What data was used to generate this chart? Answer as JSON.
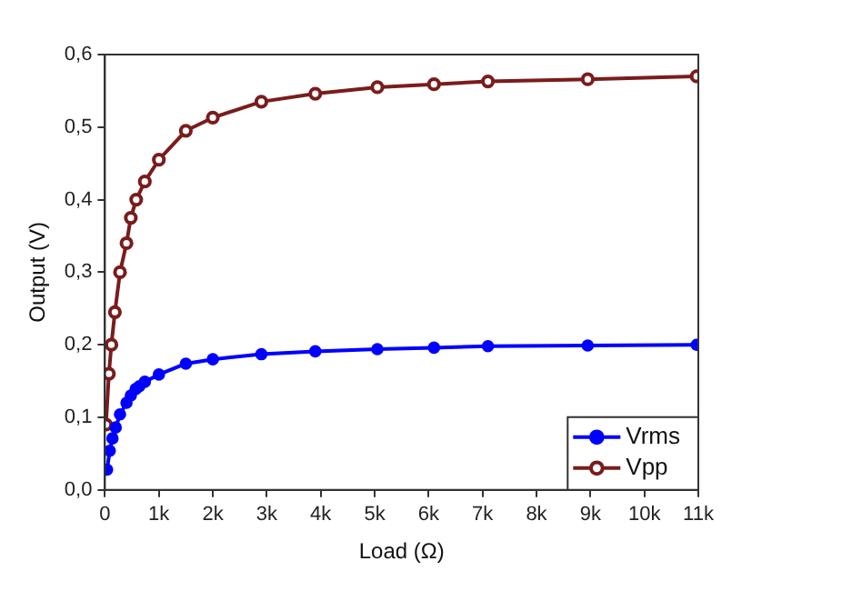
{
  "chart_data": {
    "type": "line",
    "xlabel": "Load (Ω)",
    "ylabel": "Output (V)",
    "xlim": [
      0,
      11000
    ],
    "ylim": [
      0,
      0.6
    ],
    "xticks": [
      0,
      {
        "value": 1000,
        "label": "1k"
      },
      {
        "value": 2000,
        "label": "2k"
      },
      {
        "value": 3000,
        "label": "3k"
      },
      {
        "value": 4000,
        "label": "4k"
      },
      {
        "value": 5000,
        "label": "5k"
      },
      {
        "value": 6000,
        "label": "6k"
      },
      {
        "value": 7000,
        "label": "7k"
      },
      {
        "value": 8000,
        "label": "8k"
      },
      {
        "value": 9000,
        "label": "9k"
      },
      {
        "value": 10000,
        "label": "10k"
      },
      {
        "value": 11000,
        "label": "11k"
      }
    ],
    "yticks": [
      {
        "value": 0,
        "label": "0,0"
      },
      {
        "value": 0.1,
        "label": "0,1"
      },
      {
        "value": 0.2,
        "label": "0,2"
      },
      {
        "value": 0.3,
        "label": "0,3"
      },
      {
        "value": 0.4,
        "label": "0,4"
      },
      {
        "value": 0.5,
        "label": "0,5"
      },
      {
        "value": 0.6,
        "label": "0,6"
      }
    ],
    "grid": false,
    "legend": "bottom right",
    "marker": "circle",
    "series": [
      {
        "name": "Vrms",
        "color": "#0000ff",
        "x": [
          40,
          90,
          140,
          200,
          280,
          400,
          480,
          570,
          640,
          740,
          1000,
          1500,
          2000,
          2900,
          3900,
          5050,
          6100,
          7100,
          8950,
          10970
        ],
        "values": [
          0.028,
          0.054,
          0.071,
          0.086,
          0.104,
          0.12,
          0.13,
          0.139,
          0.143,
          0.149,
          0.159,
          0.174,
          0.18,
          0.187,
          0.191,
          0.194,
          0.196,
          0.198,
          0.199,
          0.2
        ]
      },
      {
        "name": "Vpp",
        "color": "#7a1c1c",
        "x": [
          20,
          74,
          120,
          185,
          280,
          400,
          480,
          580,
          740,
          1000,
          1500,
          2000,
          2900,
          3900,
          5050,
          6100,
          7100,
          8950,
          10970
        ],
        "values": [
          0.09,
          0.16,
          0.2,
          0.245,
          0.3,
          0.34,
          0.375,
          0.4,
          0.425,
          0.455,
          0.495,
          0.513,
          0.535,
          0.546,
          0.555,
          0.559,
          0.563,
          0.566,
          0.57
        ]
      }
    ]
  }
}
